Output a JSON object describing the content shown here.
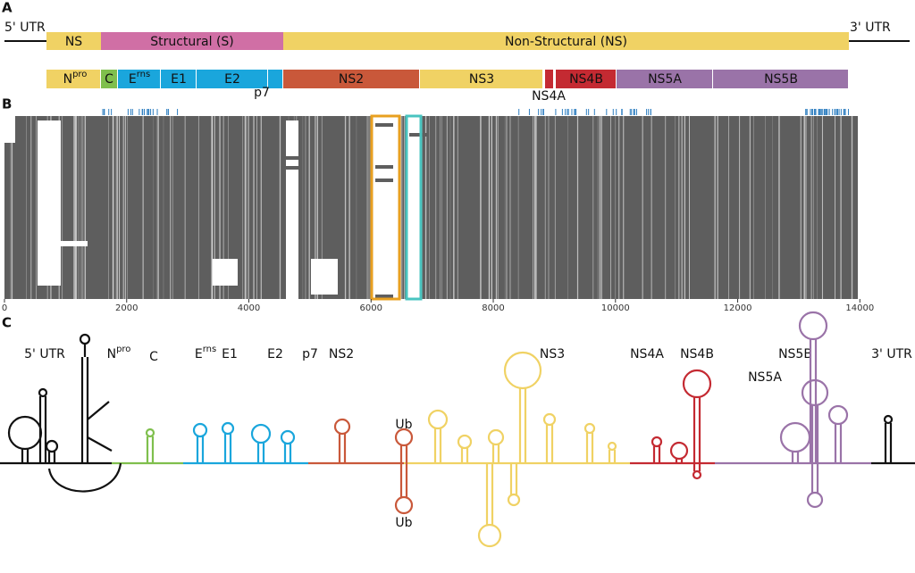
{
  "panels": {
    "a": "A",
    "b": "B",
    "c": "C"
  },
  "genome": {
    "utr5": "5' UTR",
    "utr3": "3' UTR",
    "regions": [
      "NS",
      "Structural (S)",
      "Non-Structural (NS)"
    ],
    "genes": [
      {
        "base": "N",
        "sup": "pro"
      },
      {
        "base": "C"
      },
      {
        "base": "E",
        "sup": "rns"
      },
      {
        "base": "E1"
      },
      {
        "base": "E2"
      },
      {
        "base": "p7"
      },
      {
        "base": "NS2"
      },
      {
        "base": "NS3"
      },
      {
        "base": "NS4A"
      },
      {
        "base": "NS4B"
      },
      {
        "base": "NS5A"
      },
      {
        "base": "NS5B"
      }
    ]
  },
  "alignment": {
    "xlim": [
      0,
      14800
    ],
    "xticks": [
      0,
      2000,
      4000,
      6000,
      8000,
      10000,
      12000,
      14000
    ]
  },
  "structures": {
    "labels": [
      {
        "base": "5' UTR"
      },
      {
        "base": "N",
        "sup": "pro"
      },
      {
        "base": "C"
      },
      {
        "base": "E",
        "sup": "rns"
      },
      {
        "base": "E1"
      },
      {
        "base": "E2"
      },
      {
        "base": "p7"
      },
      {
        "base": "NS2"
      },
      {
        "base": "NS3"
      },
      {
        "base": "NS4A"
      },
      {
        "base": "NS4B"
      },
      {
        "base": "NS5A"
      },
      {
        "base": "NS5B"
      },
      {
        "base": "3' UTR"
      }
    ],
    "ub": [
      "Ub",
      "Ub"
    ]
  }
}
